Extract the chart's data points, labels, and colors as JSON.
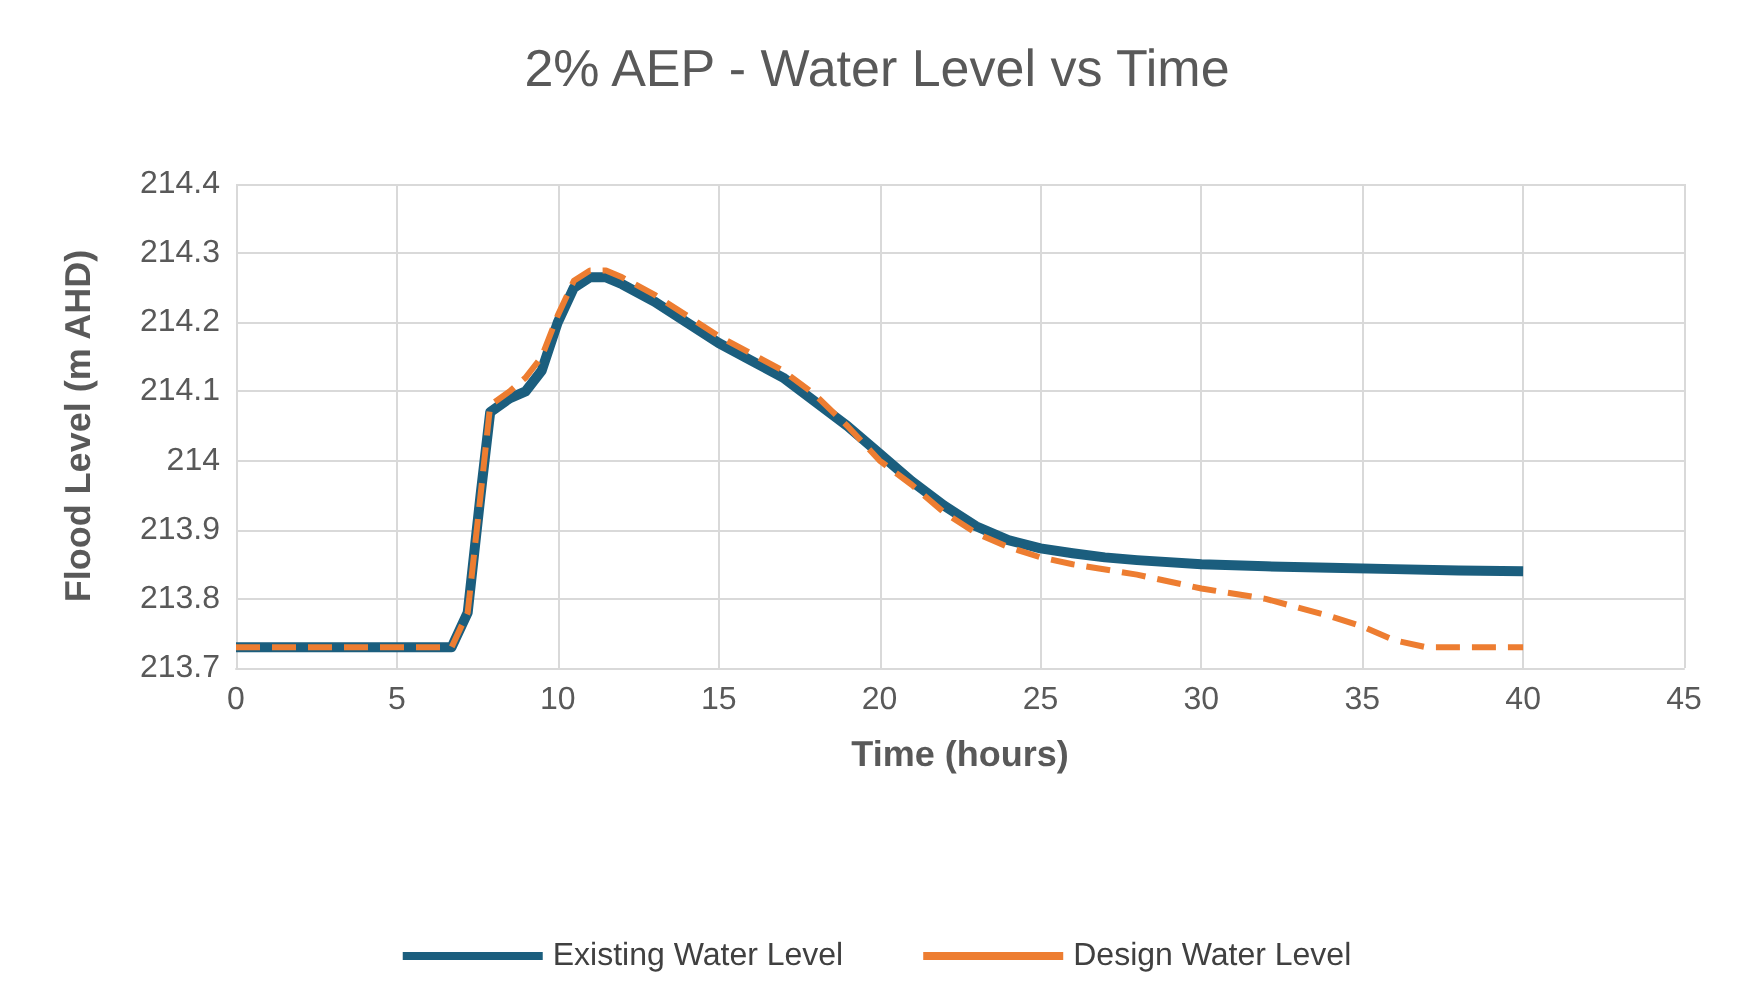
{
  "chart_data": {
    "type": "line",
    "title": "2% AEP - Water Level vs Time",
    "xlabel": "Time (hours)",
    "ylabel": "Flood Level (m AHD)",
    "xlim": [
      0,
      45
    ],
    "xticks": [
      0,
      5,
      10,
      15,
      20,
      25,
      30,
      35,
      40,
      45
    ],
    "ylim": [
      213.7,
      214.4
    ],
    "yticks": [
      213.7,
      213.8,
      213.9,
      214,
      214.1,
      214.2,
      214.3,
      214.4
    ],
    "grid": true,
    "legend": "bottom",
    "marker": "none",
    "series": [
      {
        "name": "Existing Water Level",
        "color": "#1b5e7e",
        "line_style": "solid",
        "x": [
          0,
          6.7,
          7.2,
          7.6,
          7.9,
          8.5,
          9,
          9.5,
          10,
          10.5,
          11,
          11.5,
          12,
          13,
          14,
          15,
          16,
          17,
          18,
          19,
          20,
          21,
          22,
          23,
          24,
          25,
          26,
          27,
          28,
          30,
          32,
          34,
          36,
          38,
          40
        ],
        "values": [
          213.73,
          213.73,
          213.78,
          213.95,
          214.07,
          214.09,
          214.1,
          214.13,
          214.2,
          214.25,
          214.265,
          214.265,
          214.255,
          214.23,
          214.2,
          214.17,
          214.145,
          214.12,
          214.085,
          214.05,
          214.01,
          213.97,
          213.935,
          213.905,
          213.885,
          213.873,
          213.866,
          213.86,
          213.856,
          213.85,
          213.847,
          213.845,
          213.843,
          213.841,
          213.84
        ]
      },
      {
        "name": "Design Water Level",
        "color": "#ed7d31",
        "line_style": "dashed",
        "x": [
          0,
          6.7,
          7.2,
          7.6,
          7.9,
          8.5,
          9,
          9.5,
          10,
          10.5,
          11,
          11.5,
          12,
          13,
          14,
          15,
          16,
          17,
          18,
          19,
          20,
          21,
          22,
          23,
          24,
          25,
          26,
          28,
          30,
          32,
          34,
          35,
          36,
          37,
          40
        ],
        "values": [
          213.73,
          213.73,
          213.78,
          213.95,
          214.08,
          214.1,
          214.12,
          214.15,
          214.21,
          214.26,
          214.275,
          214.275,
          214.265,
          214.24,
          214.21,
          214.18,
          214.155,
          214.13,
          214.095,
          214.05,
          214.0,
          213.965,
          213.925,
          213.895,
          213.875,
          213.86,
          213.85,
          213.835,
          213.815,
          213.8,
          213.775,
          213.76,
          213.74,
          213.73,
          213.73
        ]
      }
    ]
  }
}
